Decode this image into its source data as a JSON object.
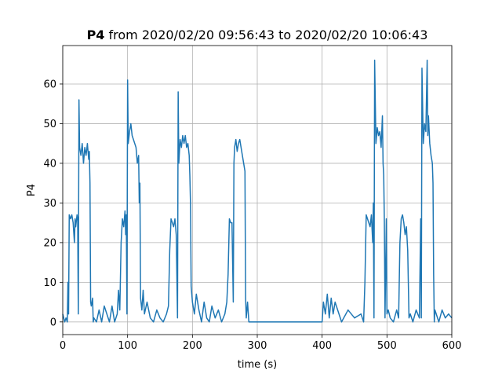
{
  "chart_data": {
    "type": "line",
    "title_bold": "P4",
    "title": "from 2020/02/20 09:56:43 to 2020/02/20 10:06:43",
    "xlabel": "time (s)",
    "ylabel": "P4",
    "xlim": [
      0,
      600
    ],
    "xticks": [
      0,
      100,
      200,
      300,
      400,
      500,
      600
    ],
    "ylim": [
      -3.2,
      69.7
    ],
    "yticks": [
      0,
      10,
      20,
      30,
      40,
      50,
      60
    ],
    "grid": true,
    "series": [
      {
        "name": "P4",
        "color": "#1f77b4",
        "x": [
          0,
          3,
          5,
          7,
          8,
          9,
          10,
          12,
          14,
          16,
          18,
          19,
          20,
          22,
          23,
          24,
          25,
          26,
          28,
          30,
          32,
          34,
          36,
          38,
          40,
          41,
          42,
          43,
          44,
          46,
          47,
          48,
          52,
          56,
          60,
          64,
          68,
          72,
          76,
          80,
          84,
          86,
          88,
          90,
          92,
          94,
          96,
          97,
          98,
          99,
          100,
          101,
          103,
          105,
          107,
          109,
          111,
          113,
          115,
          117,
          118,
          119,
          120,
          122,
          124,
          126,
          130,
          135,
          140,
          145,
          150,
          155,
          160,
          163,
          165,
          167,
          169,
          171,
          173,
          175,
          177,
          178,
          179,
          181,
          183,
          185,
          187,
          189,
          191,
          193,
          195,
          196,
          197,
          198,
          200,
          203,
          206,
          210,
          214,
          218,
          222,
          226,
          230,
          235,
          240,
          245,
          250,
          253,
          255,
          257,
          259,
          261,
          263,
          264,
          265,
          267,
          269,
          271,
          273,
          275,
          277,
          279,
          281,
          282,
          283,
          285,
          287,
          290,
          300,
          350,
          400,
          402,
          405,
          408,
          411,
          414,
          417,
          420,
          430,
          440,
          450,
          460,
          464,
          466,
          468,
          470,
          472,
          474,
          476,
          478,
          479,
          480,
          481,
          483,
          485,
          487,
          489,
          491,
          493,
          494,
          495,
          496,
          497,
          499,
          500,
          502,
          505,
          510,
          515,
          518,
          520,
          522,
          524,
          526,
          528,
          530,
          532,
          534,
          536,
          540,
          545,
          550,
          552,
          553,
          554,
          556,
          558,
          560,
          562,
          563,
          564,
          566,
          568,
          570,
          571,
          572,
          573,
          574,
          576,
          580,
          585,
          590,
          595,
          600
        ],
        "values": [
          2,
          0,
          1,
          0,
          10,
          2,
          27,
          26,
          27,
          25,
          20,
          26,
          24,
          27,
          26,
          2,
          56,
          44,
          42,
          45,
          40,
          44,
          42,
          45,
          41,
          43,
          35,
          5,
          4,
          6,
          0,
          1,
          0,
          3,
          0,
          4,
          2,
          0,
          4,
          0,
          2,
          8,
          3,
          20,
          26,
          24,
          28,
          22,
          27,
          2,
          61,
          45,
          48,
          50,
          47,
          46,
          45,
          44,
          40,
          42,
          30,
          35,
          6,
          3,
          8,
          2,
          5,
          1,
          0,
          3,
          1,
          0,
          2,
          4,
          18,
          26,
          25,
          24,
          26,
          22,
          1,
          58,
          40,
          46,
          44,
          47,
          45,
          47,
          44,
          45,
          42,
          37,
          30,
          9,
          5,
          2,
          7,
          3,
          0,
          5,
          1,
          0,
          4,
          1,
          3,
          0,
          2,
          5,
          12,
          26,
          25,
          25,
          5,
          40,
          44,
          46,
          43,
          45,
          46,
          44,
          42,
          40,
          38,
          6,
          1,
          5,
          0,
          0,
          0,
          0,
          0,
          5,
          2,
          7,
          1,
          6,
          2,
          5,
          0,
          3,
          1,
          2,
          0,
          10,
          27,
          26,
          25,
          24,
          27,
          20,
          30,
          1,
          66,
          45,
          49,
          47,
          48,
          44,
          52,
          40,
          37,
          25,
          1,
          26,
          2,
          3,
          1,
          0,
          3,
          1,
          20,
          26,
          27,
          25,
          22,
          24,
          18,
          1,
          2,
          0,
          3,
          1,
          26,
          1,
          64,
          45,
          50,
          48,
          66,
          47,
          52,
          45,
          42,
          40,
          35,
          12,
          0,
          3,
          2,
          0,
          3,
          1,
          2,
          1
        ]
      }
    ]
  }
}
